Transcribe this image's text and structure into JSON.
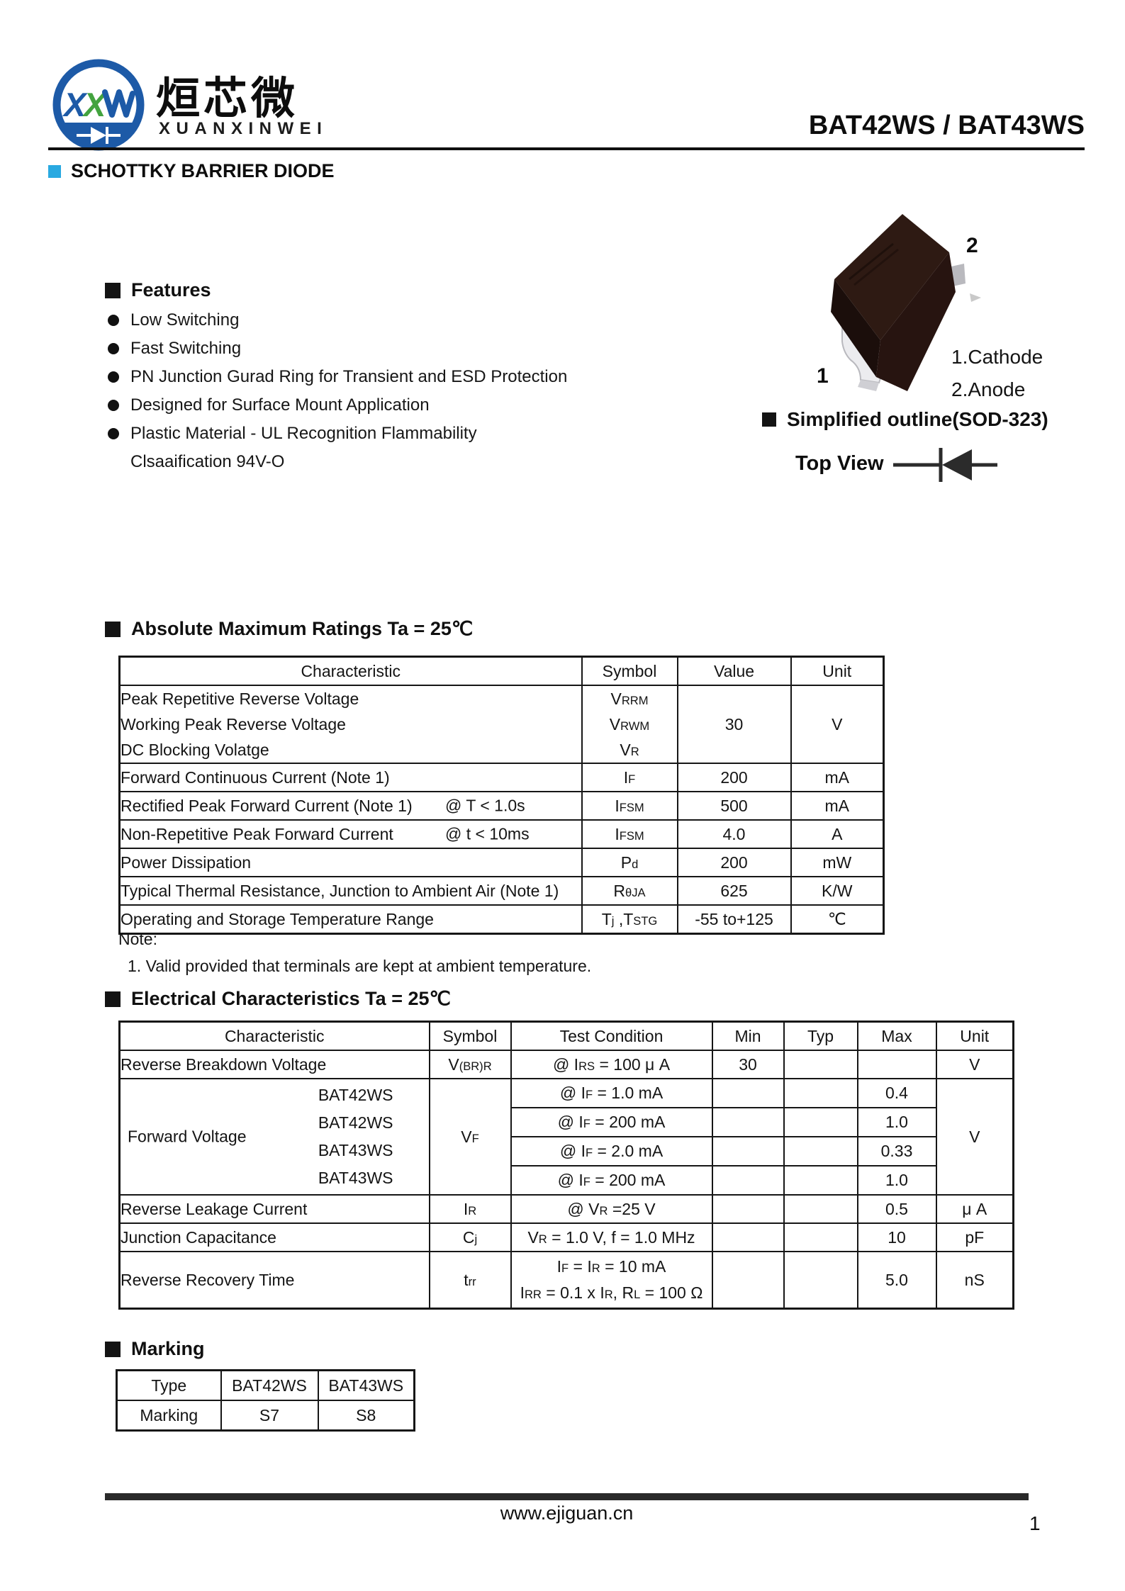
{
  "header": {
    "logo": {
      "monogram": "XXW",
      "cn": "烜芯微",
      "en": "XUANXINWEI"
    },
    "part_number": "BAT42WS / BAT43WS",
    "category": "SCHOTTKY BARRIER DIODE"
  },
  "features": {
    "title": "Features",
    "items": [
      "Low Switching",
      "Fast Switching",
      "PN Junction Gurad Ring for Transient and ESD Protection",
      "Designed for Surface Mount Application",
      "Plastic Material - UL Recognition Flammability",
      "Clsaaification 94V-O"
    ]
  },
  "package": {
    "pin1": "1",
    "pin2": "2",
    "legend1": "1.Cathode",
    "legend2": "2.Anode",
    "outline_title": "Simplified outline(SOD-323)",
    "top_view": "Top View"
  },
  "absolute_maximum": {
    "title": "Absolute Maximum Ratings Ta = 25℃",
    "headers": [
      "Characteristic",
      "Symbol",
      "Value",
      "Unit"
    ],
    "row_voltage": {
      "lines": [
        "Peak Repetitive  Reverse Voltage",
        "Working Peak Reverse Voltage",
        "DC Blocking Volatge"
      ],
      "symbols": [
        "V_{RRM}",
        "V_{RWM}",
        "V_{R}"
      ],
      "value": "30",
      "unit": "V"
    },
    "rows": [
      {
        "characteristic": "Forward Continuous Current (Note 1)",
        "condition": "",
        "symbol": "I_{F}",
        "value": "200",
        "unit": "mA"
      },
      {
        "characteristic": "Rectified Peak Forward Current (Note 1)",
        "condition": "@  T < 1.0s",
        "symbol": "I_{FSM}",
        "value": "500",
        "unit": "mA"
      },
      {
        "characteristic": "Non-Repetitive Peak Forward Current",
        "condition": "@  t < 10ms",
        "symbol": "I_{FSM}",
        "value": "4.0",
        "unit": "A"
      },
      {
        "characteristic": "Power Dissipation",
        "condition": "",
        "symbol": "P_{d}",
        "value": "200",
        "unit": "mW"
      },
      {
        "characteristic": "Typical Thermal Resistance, Junction to Ambient Air (Note 1)",
        "condition": "",
        "symbol": "R_{θJA}",
        "value": "625",
        "unit": "K/W"
      },
      {
        "characteristic": "Operating and Storage Temperature Range",
        "condition": "",
        "symbol": "T_{j} ,T_{STG}",
        "value": "-55 to+125",
        "unit": "℃"
      }
    ],
    "note_title": "Note:",
    "note": "1. Valid provided that terminals are kept at ambient temperature."
  },
  "electrical": {
    "title": "Electrical Characteristics Ta = 25℃",
    "headers": [
      "Characteristic",
      "Symbol",
      "Test Condition",
      "Min",
      "Typ",
      "Max",
      "Unit"
    ],
    "breakdown": {
      "characteristic": "Reverse Breakdown Voltage",
      "symbol": "V_{(BR)R}",
      "condition": "@ I_{RS} = 100 μ A",
      "min": "30",
      "typ": "",
      "max": "",
      "unit": "V"
    },
    "forward": {
      "characteristic": "Forward Voltage",
      "symbol": "V_{F}",
      "unit": "V",
      "variants": [
        "BAT42WS",
        "BAT42WS",
        "BAT43WS",
        "BAT43WS"
      ],
      "conditions": [
        "@ I_{F} = 1.0 mA",
        "@ I_{F} = 200 mA",
        "@ I_{F} = 2.0 mA",
        "@ I_{F} = 200 mA"
      ],
      "max": [
        "0.4",
        "1.0",
        "0.33",
        "1.0"
      ]
    },
    "leakage": {
      "characteristic": "Reverse Leakage Current",
      "symbol": "I_{R}",
      "condition": "@ V_{R} =25 V",
      "max": "0.5",
      "unit": "μ A"
    },
    "capacitance": {
      "characteristic": "Junction Capacitance",
      "symbol": "C_{j}",
      "condition": "V_{R} = 1.0 V, f = 1.0 MHz",
      "max": "10",
      "unit": "pF"
    },
    "recovery": {
      "characteristic": "Reverse Recovery Time",
      "symbol": "t_{rr}",
      "condition_line1": "I_{F} = I_{R} = 10 mA",
      "condition_line2": "I_{RR} = 0.1 x I_{R},  R_{L} = 100 Ω",
      "max": "5.0",
      "unit": "nS"
    }
  },
  "marking": {
    "title": "Marking",
    "headers": [
      "Type",
      "BAT42WS",
      "BAT43WS"
    ],
    "row_label": "Marking",
    "values": [
      "S7",
      "S8"
    ]
  },
  "footer": {
    "website": "www.ejiguan.cn",
    "page": "1"
  }
}
